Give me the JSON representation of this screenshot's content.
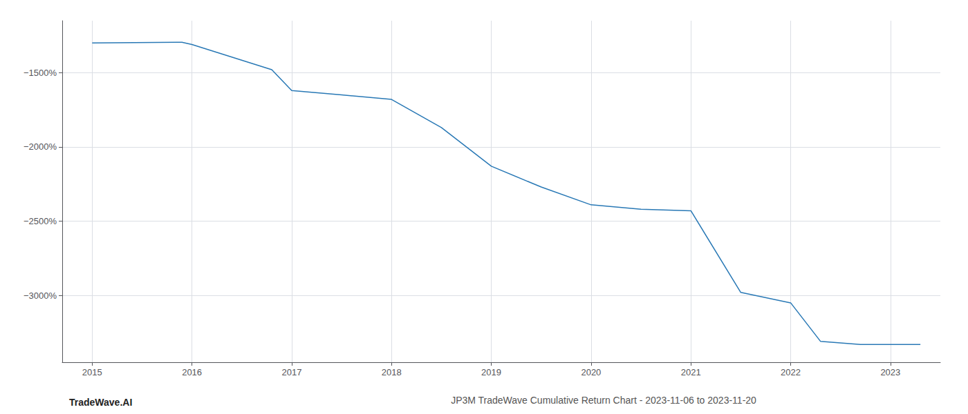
{
  "chart_data": {
    "type": "line",
    "title": "JP3M TradeWave Cumulative Return Chart - 2023-11-06 to 2023-11-20",
    "annotations": [
      "TradeWave.AI"
    ],
    "x": [
      2015.0,
      2015.9,
      2016.0,
      2016.8,
      2017.0,
      2017.5,
      2018.0,
      2018.5,
      2019.0,
      2019.5,
      2020.0,
      2020.5,
      2021.0,
      2021.5,
      2022.0,
      2022.3,
      2022.7,
      2023.0,
      2023.3
    ],
    "values": [
      -1300,
      -1295,
      -1310,
      -1480,
      -1620,
      -1650,
      -1680,
      -1870,
      -2130,
      -2270,
      -2390,
      -2420,
      -2430,
      -2980,
      -3050,
      -3310,
      -3330,
      -3330,
      -3330
    ],
    "color": "#2878b5",
    "xlim": [
      2014.7,
      2023.5
    ],
    "xticks": [
      2015,
      2016,
      2017,
      2018,
      2019,
      2020,
      2021,
      2022,
      2023
    ],
    "ylim": [
      -3450,
      -1150
    ],
    "yticks": [
      {
        "value": -1500,
        "label": "−1500%"
      },
      {
        "value": -2000,
        "label": "−2000%"
      },
      {
        "value": -2500,
        "label": "−2500%"
      },
      {
        "value": -3000,
        "label": "−3000%"
      }
    ],
    "grid": true
  }
}
